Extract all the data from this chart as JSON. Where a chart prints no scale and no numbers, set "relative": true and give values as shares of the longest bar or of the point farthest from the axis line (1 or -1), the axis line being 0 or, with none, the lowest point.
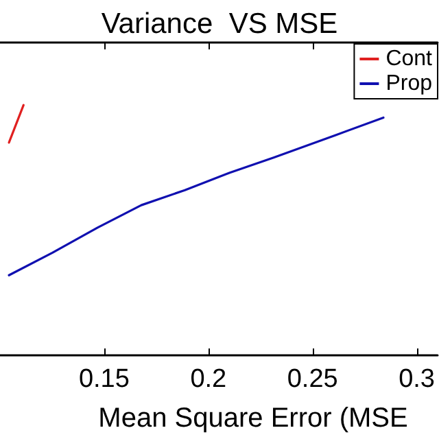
{
  "chart_data": {
    "type": "line",
    "title": "Variance  VS MSE",
    "xlabel": "Mean Square Error (MSE",
    "relative": true,
    "tick_labels": "x",
    "xlim": [
      0.1,
      0.31
    ],
    "xticks": [
      0.15,
      0.2,
      0.25,
      0.3
    ],
    "grid": false,
    "legend": "top right",
    "marker": "none",
    "line_style": "solid",
    "series": [
      {
        "name": "Cont",
        "color": "#e02020",
        "x": [
          0.1043,
          0.1113
        ],
        "values": [
          0.85,
          1.0
        ]
      },
      {
        "name": "Prop",
        "color": "#1010b0",
        "x": [
          0.1043,
          0.1252,
          0.1468,
          0.1678,
          0.1887,
          0.2103,
          0.2313,
          0.2611,
          0.284
        ],
        "values": [
          0.32,
          0.41,
          0.51,
          0.6,
          0.66,
          0.73,
          0.79,
          0.88,
          0.95
        ]
      }
    ]
  }
}
